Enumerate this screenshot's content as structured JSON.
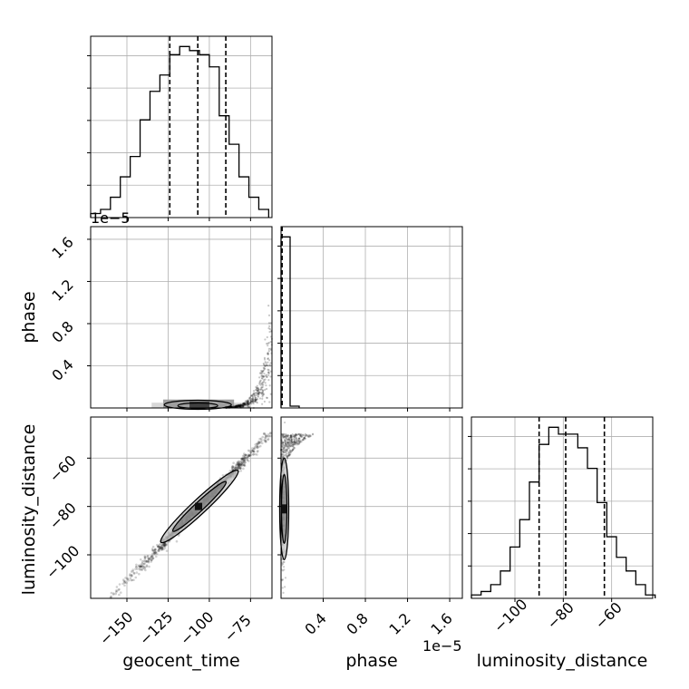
{
  "chart_data": {
    "type": "corner",
    "parameters": [
      "geocent_time",
      "phase",
      "luminosity_distance"
    ],
    "grid": true,
    "panels": [
      {
        "kind": "histogram",
        "parameter": "geocent_time",
        "xlim": [
          -172,
          -62
        ],
        "bin_edges": [
          -172,
          -166,
          -160,
          -154,
          -148,
          -142,
          -136,
          -130,
          -124,
          -118,
          -112,
          -106,
          -100,
          -94,
          -88,
          -82,
          -76,
          -70,
          -64
        ],
        "counts": [
          1,
          2,
          5,
          10,
          15,
          24,
          31,
          35,
          40,
          42,
          41,
          40,
          37,
          25,
          18,
          10,
          5,
          2
        ],
        "quantiles": [
          -124,
          -107,
          -90
        ],
        "x_ticks": [
          -150,
          -125,
          -100,
          -75
        ]
      },
      {
        "kind": "scatter2d",
        "x_parameter": "geocent_time",
        "y_parameter": "phase",
        "xlim": [
          -172,
          -62
        ],
        "ylim": [
          0,
          1.72
        ],
        "y_ticks": [
          "0.4",
          "0.8",
          "1.2",
          "1.6"
        ],
        "y_offset": "1e−5",
        "x_ticks": [
          -150,
          -125,
          -100,
          -75
        ]
      },
      {
        "kind": "histogram",
        "parameter": "phase",
        "xlim": [
          0,
          1.72
        ],
        "bin_edges": [
          0,
          0.086,
          0.172
        ],
        "counts": [
          95,
          1
        ],
        "quantiles": [
          0.01
        ],
        "x_ticks": [
          "0.4",
          "0.8",
          "1.2",
          "1.6"
        ]
      },
      {
        "kind": "scatter2d",
        "x_parameter": "geocent_time",
        "y_parameter": "luminosity_distance",
        "xlim": [
          -172,
          -62
        ],
        "ylim": [
          -118,
          -43
        ],
        "x_ticks": [
          "−150",
          "−125",
          "−100",
          "−75"
        ],
        "y_ticks": [
          "−100",
          "−80",
          "−60"
        ]
      },
      {
        "kind": "scatter2d",
        "x_parameter": "phase",
        "y_parameter": "luminosity_distance",
        "xlim": [
          0,
          1.72
        ],
        "ylim": [
          -118,
          -43
        ],
        "x_ticks": [
          "0.4",
          "0.8",
          "1.2",
          "1.6"
        ],
        "x_offset": "1e−5"
      },
      {
        "kind": "histogram",
        "parameter": "luminosity_distance",
        "xlim": [
          -118,
          -43
        ],
        "bin_edges": [
          -118,
          -114,
          -110,
          -106,
          -102,
          -98,
          -94,
          -90,
          -86,
          -82,
          -78,
          -74,
          -70,
          -66,
          -62,
          -58,
          -54,
          -50,
          -46,
          -42
        ],
        "counts": [
          1,
          2,
          4,
          8,
          15,
          23,
          34,
          45,
          50,
          48,
          48,
          44,
          38,
          28,
          18,
          12,
          8,
          4,
          1
        ],
        "quantiles": [
          -90,
          -79,
          -63
        ],
        "x_ticks": [
          "−100",
          "−80",
          "−60"
        ]
      }
    ]
  }
}
